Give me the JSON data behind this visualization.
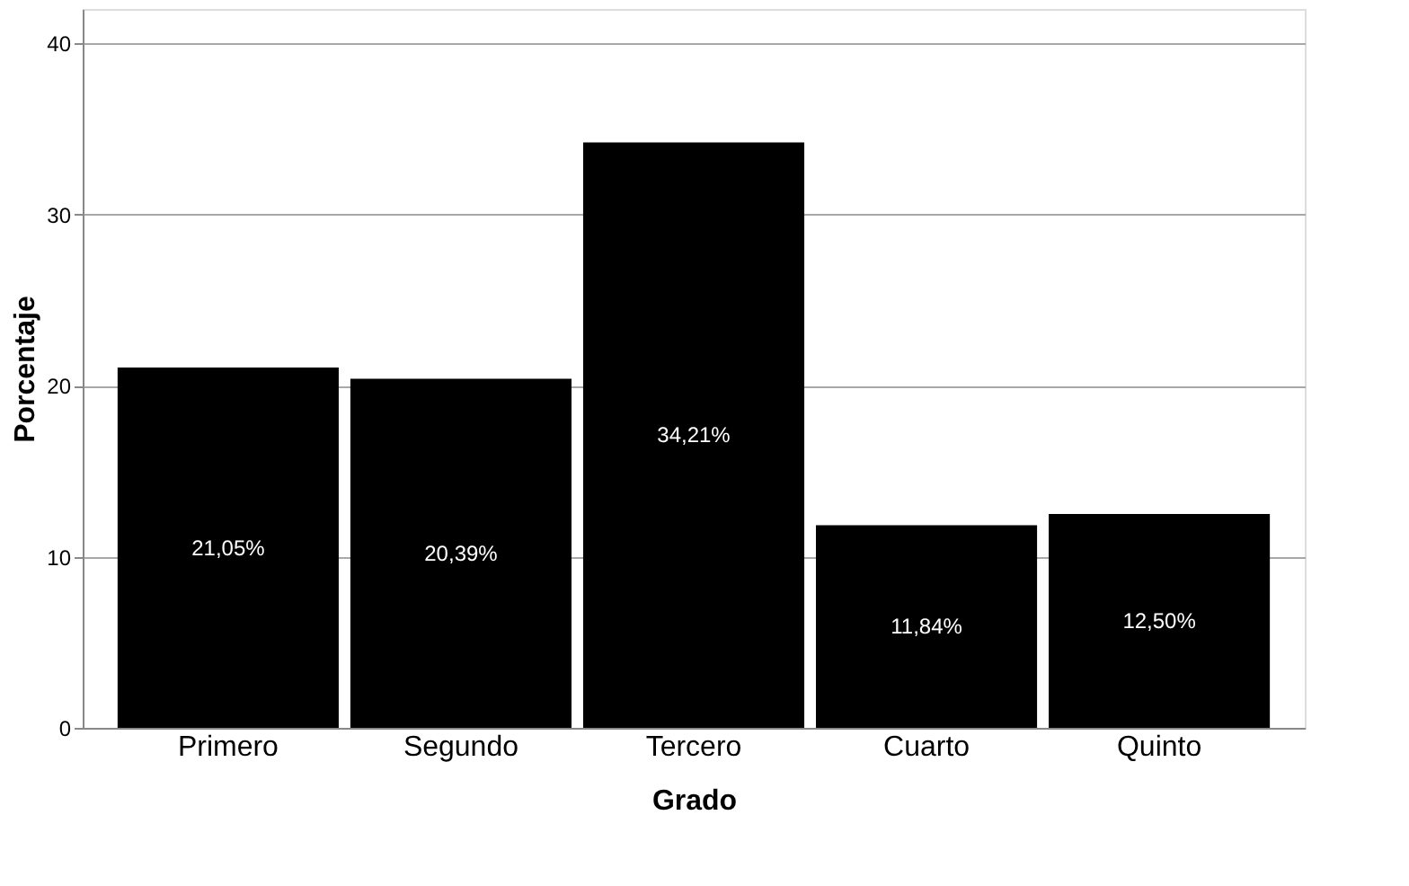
{
  "chart_data": {
    "type": "bar",
    "xlabel": "Grado",
    "ylabel": "Porcentaje",
    "categories": [
      "Primero",
      "Segundo",
      "Tercero",
      "Cuarto",
      "Quinto"
    ],
    "values": [
      21.05,
      20.39,
      34.21,
      11.84,
      12.5
    ],
    "value_labels": [
      "21,05%",
      "20,39%",
      "34,21%",
      "11,84%",
      "12,50%"
    ],
    "color": "#000000",
    "ylim": [
      0,
      42
    ],
    "yticks": [
      0,
      10,
      20,
      30,
      40
    ],
    "grid": "y"
  }
}
